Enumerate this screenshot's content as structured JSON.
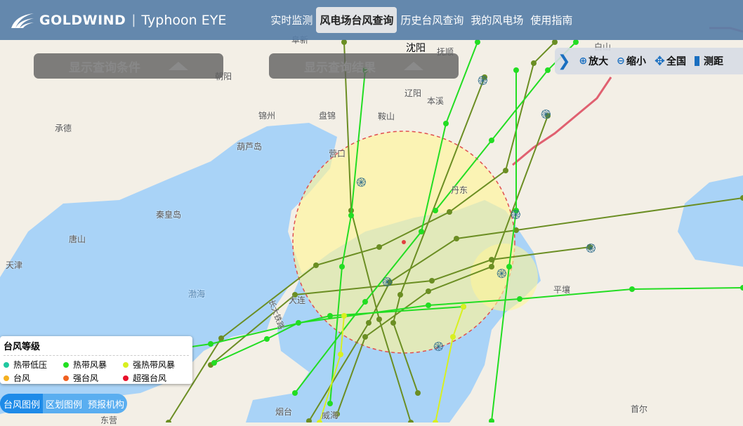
{
  "header": {
    "brand": "GOLDWIND",
    "separator": "|",
    "product": "Typhoon EYE",
    "nav": [
      {
        "label": "实时监测"
      },
      {
        "label": "风电场台风查询",
        "active": true
      },
      {
        "label": "历史台风查询"
      },
      {
        "label": "我的风电场"
      },
      {
        "label": "使用指南"
      }
    ]
  },
  "panels": {
    "conditions": "显示查询条件",
    "results": "显示查询结果"
  },
  "tools": {
    "zoom_in": "放大",
    "zoom_out": "缩小",
    "full": "全国",
    "measure": "测距"
  },
  "legend": {
    "title": "台风等级",
    "items": [
      {
        "label": "热带低压",
        "color": "#20c8a0"
      },
      {
        "label": "热带风暴",
        "color": "#22e022"
      },
      {
        "label": "强热带风暴",
        "color": "#d8f020"
      },
      {
        "label": "台风",
        "color": "#f5b020"
      },
      {
        "label": "强台风",
        "color": "#f06020"
      },
      {
        "label": "超强台风",
        "color": "#e8102a"
      }
    ]
  },
  "tabs": [
    {
      "label": "台风图例",
      "active": true
    },
    {
      "label": "区划图例"
    },
    {
      "label": "预报机构"
    }
  ],
  "map": {
    "cities": [
      "沈阳",
      "抚顺",
      "阜新",
      "朝阳",
      "辽阳",
      "本溪",
      "锦州",
      "盘锦",
      "鞍山",
      "承德",
      "葫芦岛",
      "营口",
      "丹东",
      "秦皇岛",
      "唐山",
      "天津",
      "渤海",
      "大连",
      "平壤",
      "首尔",
      "烟台",
      "威海",
      "东营",
      "白山",
      "长大铁路"
    ],
    "colors": {
      "land": "#f3efe6",
      "sea": "#a9d3f7",
      "circle_fill": "#fff59a",
      "circle_stroke": "#e05050",
      "track_dark": "#6b8e23",
      "track_green": "#22dd22",
      "track_yellow": "#d8f020"
    }
  }
}
